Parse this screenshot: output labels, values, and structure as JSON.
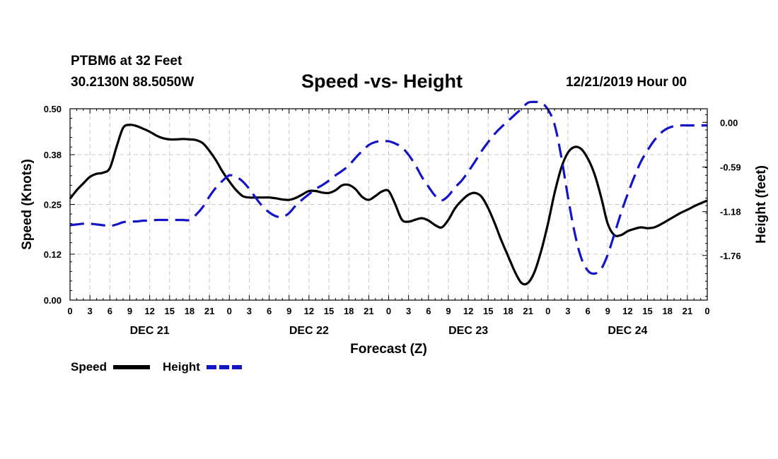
{
  "header": {
    "station": "PTBM6 at 32 Feet",
    "coords": "30.2130N 88.5050W",
    "title": "Speed -vs- Height",
    "datetime": "12/21/2019 Hour 00"
  },
  "chart_data": {
    "type": "line",
    "title": "Speed -vs- Height",
    "xlabel": "Forecast (Z)",
    "ylabel": "Speed (Knots)",
    "y2label": "Height (feet)",
    "xlim": [
      0,
      96
    ],
    "ylim": [
      0,
      0.5
    ],
    "y2lim": [
      -2.35,
      0.18
    ],
    "grid": true,
    "x_ticks": [
      0,
      3,
      6,
      9,
      12,
      15,
      18,
      21,
      24,
      27,
      30,
      33,
      36,
      39,
      42,
      45,
      48,
      51,
      54,
      57,
      60,
      63,
      66,
      69,
      72,
      75,
      78,
      81,
      84,
      87,
      90,
      93,
      96
    ],
    "x_tick_labels": [
      "0",
      "3",
      "6",
      "9",
      "12",
      "15",
      "18",
      "21",
      "0",
      "3",
      "6",
      "9",
      "12",
      "15",
      "18",
      "21",
      "0",
      "3",
      "6",
      "9",
      "12",
      "15",
      "18",
      "21",
      "0",
      "3",
      "6",
      "9",
      "12",
      "15",
      "18",
      "21",
      "0"
    ],
    "day_labels": [
      {
        "x": 12,
        "label": "DEC 21"
      },
      {
        "x": 36,
        "label": "DEC 22"
      },
      {
        "x": 60,
        "label": "DEC 23"
      },
      {
        "x": 84,
        "label": "DEC 24"
      }
    ],
    "y_ticks": [
      0.0,
      0.12,
      0.25,
      0.38,
      0.5
    ],
    "y_tick_labels": [
      "0.00",
      "0.12",
      "0.25",
      "0.38",
      "0.50"
    ],
    "y2_ticks": [
      0.0,
      -0.59,
      -1.18,
      -1.76
    ],
    "y2_tick_labels": [
      "0.00",
      "-0.59",
      "-1.18",
      "-1.76"
    ],
    "legend": [
      "Speed",
      "Height"
    ],
    "legend_position": "bottom-left",
    "series": [
      {
        "name": "Speed",
        "axis": "left",
        "color": "#000000",
        "style": "solid",
        "x": [
          0,
          1,
          2,
          3,
          4,
          5,
          6,
          7,
          8,
          9,
          10,
          11,
          12,
          13,
          14,
          15,
          16,
          17,
          18,
          19,
          20,
          21,
          22,
          23,
          24,
          25,
          26,
          27,
          28,
          29,
          30,
          31,
          32,
          33,
          34,
          35,
          36,
          37,
          38,
          39,
          40,
          41,
          42,
          43,
          44,
          45,
          46,
          47,
          48,
          49,
          50,
          51,
          52,
          53,
          54,
          55,
          56,
          57,
          58,
          59,
          60,
          61,
          62,
          63,
          64,
          65,
          66,
          67,
          68,
          69,
          70,
          71,
          72,
          73,
          74,
          75,
          76,
          77,
          78,
          79,
          80,
          81,
          82,
          83,
          84,
          85,
          86,
          87,
          88,
          89,
          90,
          91,
          92,
          93,
          94,
          95,
          96
        ],
        "values": [
          0.265,
          0.287,
          0.305,
          0.322,
          0.33,
          0.333,
          0.345,
          0.4,
          0.45,
          0.458,
          0.455,
          0.448,
          0.44,
          0.43,
          0.423,
          0.42,
          0.42,
          0.421,
          0.42,
          0.418,
          0.41,
          0.39,
          0.365,
          0.335,
          0.31,
          0.288,
          0.272,
          0.268,
          0.268,
          0.268,
          0.268,
          0.266,
          0.263,
          0.262,
          0.267,
          0.276,
          0.285,
          0.285,
          0.281,
          0.28,
          0.287,
          0.3,
          0.301,
          0.29,
          0.27,
          0.262,
          0.272,
          0.284,
          0.285,
          0.25,
          0.21,
          0.205,
          0.21,
          0.214,
          0.208,
          0.196,
          0.19,
          0.21,
          0.24,
          0.26,
          0.275,
          0.28,
          0.27,
          0.24,
          0.2,
          0.155,
          0.115,
          0.075,
          0.045,
          0.045,
          0.075,
          0.13,
          0.2,
          0.28,
          0.345,
          0.385,
          0.4,
          0.395,
          0.37,
          0.33,
          0.27,
          0.2,
          0.17,
          0.17,
          0.18,
          0.186,
          0.19,
          0.188,
          0.19,
          0.198,
          0.208,
          0.218,
          0.228,
          0.236,
          0.245,
          0.253,
          0.26
        ]
      },
      {
        "name": "Height",
        "axis": "right",
        "color": "#1515c8",
        "style": "dashed",
        "x": [
          0,
          1,
          2,
          3,
          4,
          5,
          6,
          7,
          8,
          9,
          10,
          11,
          12,
          13,
          14,
          15,
          16,
          17,
          18,
          19,
          20,
          21,
          22,
          23,
          24,
          25,
          26,
          27,
          28,
          29,
          30,
          31,
          32,
          33,
          34,
          35,
          36,
          37,
          38,
          39,
          40,
          41,
          42,
          43,
          44,
          45,
          46,
          47,
          48,
          49,
          50,
          51,
          52,
          53,
          54,
          55,
          56,
          57,
          58,
          59,
          60,
          61,
          62,
          63,
          64,
          65,
          66,
          67,
          68,
          69,
          70,
          71,
          72,
          73,
          74,
          75,
          76,
          77,
          78,
          79,
          80,
          81,
          82,
          83,
          84,
          85,
          86,
          87,
          88,
          89,
          90,
          91,
          92,
          93,
          94,
          95,
          96
        ],
        "values": [
          -1.36,
          -1.35,
          -1.34,
          -1.34,
          -1.35,
          -1.36,
          -1.37,
          -1.35,
          -1.32,
          -1.31,
          -1.31,
          -1.3,
          -1.3,
          -1.29,
          -1.29,
          -1.29,
          -1.29,
          -1.29,
          -1.29,
          -1.22,
          -1.12,
          -0.98,
          -0.86,
          -0.77,
          -0.7,
          -0.72,
          -0.78,
          -0.88,
          -1.0,
          -1.11,
          -1.19,
          -1.24,
          -1.25,
          -1.2,
          -1.1,
          -1.02,
          -0.95,
          -0.88,
          -0.83,
          -0.77,
          -0.7,
          -0.64,
          -0.57,
          -0.47,
          -0.38,
          -0.3,
          -0.26,
          -0.25,
          -0.25,
          -0.28,
          -0.33,
          -0.43,
          -0.56,
          -0.72,
          -0.85,
          -0.97,
          -1.03,
          -0.97,
          -0.86,
          -0.77,
          -0.65,
          -0.52,
          -0.38,
          -0.26,
          -0.15,
          -0.06,
          0.02,
          0.1,
          0.18,
          0.26,
          0.27,
          0.26,
          0.17,
          -0.03,
          -0.45,
          -0.98,
          -1.45,
          -1.79,
          -1.96,
          -2.0,
          -1.94,
          -1.75,
          -1.48,
          -1.2,
          -0.95,
          -0.72,
          -0.52,
          -0.37,
          -0.24,
          -0.14,
          -0.08,
          -0.05,
          -0.04,
          -0.04,
          -0.04,
          -0.04,
          -0.04
        ]
      }
    ]
  }
}
